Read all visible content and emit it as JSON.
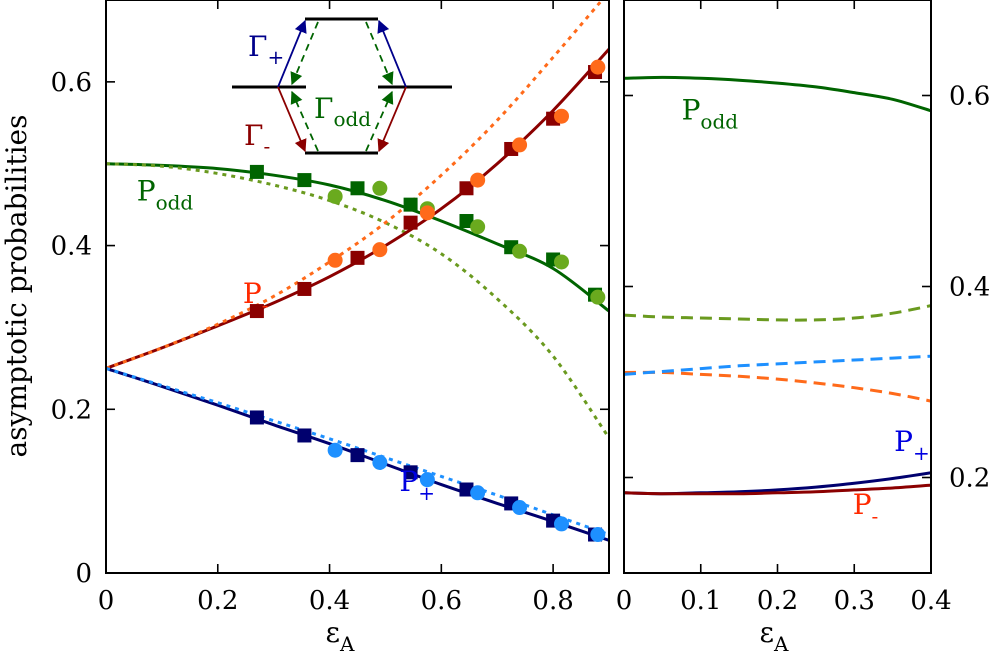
{
  "chart_data": [
    {
      "type": "line",
      "panel": "left",
      "xlabel": "ε",
      "xlabel_sub": "A",
      "ylabel": "asymptotic probabilities",
      "xlim": [
        0,
        0.9
      ],
      "ylim": [
        0,
        0.7
      ],
      "x_ticks": [
        0,
        0.2,
        0.4,
        0.6,
        0.8
      ],
      "x_tick_labels": [
        "0",
        "0.2",
        "0.4",
        "0.6",
        "0.8"
      ],
      "y_ticks": [
        0,
        0.2,
        0.4,
        0.6
      ],
      "y_tick_labels": [
        "0",
        "0.2",
        "0.4",
        "0.6"
      ],
      "grid": false,
      "legend": "inline labels",
      "series": [
        {
          "label": "P_odd",
          "color": "#006400",
          "style": "solid",
          "x": [
            0,
            0.1,
            0.2,
            0.3,
            0.4,
            0.5,
            0.6,
            0.7,
            0.8,
            0.9
          ],
          "y": [
            0.5,
            0.498,
            0.494,
            0.486,
            0.474,
            0.455,
            0.43,
            0.402,
            0.372,
            0.32
          ]
        },
        {
          "label": "P_odd approx",
          "color": "#6a9a1f",
          "style": "dotted",
          "x": [
            0,
            0.1,
            0.2,
            0.3,
            0.4,
            0.5,
            0.6,
            0.7,
            0.8,
            0.9
          ],
          "y": [
            0.5,
            0.497,
            0.488,
            0.474,
            0.455,
            0.428,
            0.39,
            0.335,
            0.265,
            0.165
          ]
        },
        {
          "label": "P_-",
          "color": "#8b0000",
          "style": "solid",
          "x": [
            0,
            0.1,
            0.2,
            0.3,
            0.4,
            0.5,
            0.6,
            0.7,
            0.8,
            0.9
          ],
          "y": [
            0.25,
            0.275,
            0.302,
            0.33,
            0.362,
            0.4,
            0.445,
            0.5,
            0.565,
            0.64
          ]
        },
        {
          "label": "P_- approx",
          "color": "#ff6a1a",
          "style": "dotted",
          "x": [
            0,
            0.1,
            0.2,
            0.3,
            0.4,
            0.5,
            0.6,
            0.7,
            0.8,
            0.9
          ],
          "y": [
            0.25,
            0.275,
            0.304,
            0.338,
            0.38,
            0.428,
            0.486,
            0.553,
            0.63,
            0.71
          ]
        },
        {
          "label": "P_+",
          "color": "#00006e",
          "style": "solid",
          "x": [
            0,
            0.1,
            0.2,
            0.3,
            0.4,
            0.5,
            0.6,
            0.7,
            0.8,
            0.9
          ],
          "y": [
            0.25,
            0.228,
            0.205,
            0.181,
            0.158,
            0.133,
            0.108,
            0.085,
            0.063,
            0.04
          ]
        },
        {
          "label": "P_+ approx",
          "color": "#1e90ff",
          "style": "dotted",
          "x": [
            0,
            0.1,
            0.2,
            0.3,
            0.4,
            0.5,
            0.6,
            0.7,
            0.8,
            0.9
          ],
          "y": [
            0.25,
            0.229,
            0.208,
            0.186,
            0.164,
            0.141,
            0.118,
            0.095,
            0.071,
            0.047
          ]
        }
      ],
      "markers": [
        {
          "shape": "square",
          "color": "#006400",
          "x": [
            0.27,
            0.355,
            0.45,
            0.545,
            0.645,
            0.725,
            0.8,
            0.875
          ],
          "y": [
            0.49,
            0.48,
            0.47,
            0.45,
            0.43,
            0.398,
            0.383,
            0.34
          ]
        },
        {
          "shape": "circle",
          "color": "#6aaa1e",
          "x": [
            0.41,
            0.49,
            0.575,
            0.665,
            0.74,
            0.815,
            0.88
          ],
          "y": [
            0.46,
            0.47,
            0.445,
            0.423,
            0.393,
            0.38,
            0.337
          ]
        },
        {
          "shape": "square",
          "color": "#8b0000",
          "x": [
            0.27,
            0.355,
            0.45,
            0.545,
            0.645,
            0.725,
            0.8,
            0.875
          ],
          "y": [
            0.32,
            0.347,
            0.385,
            0.428,
            0.47,
            0.518,
            0.555,
            0.612
          ]
        },
        {
          "shape": "circle",
          "color": "#ff6a1a",
          "x": [
            0.41,
            0.49,
            0.575,
            0.665,
            0.74,
            0.815,
            0.88
          ],
          "y": [
            0.382,
            0.395,
            0.44,
            0.48,
            0.523,
            0.558,
            0.618
          ]
        },
        {
          "shape": "square",
          "color": "#00006e",
          "x": [
            0.27,
            0.355,
            0.45,
            0.545,
            0.645,
            0.725,
            0.8,
            0.875
          ],
          "y": [
            0.19,
            0.168,
            0.144,
            0.123,
            0.102,
            0.085,
            0.064,
            0.047
          ]
        },
        {
          "shape": "circle",
          "color": "#1e90ff",
          "x": [
            0.41,
            0.49,
            0.575,
            0.665,
            0.74,
            0.815,
            0.88
          ],
          "y": [
            0.15,
            0.135,
            0.114,
            0.098,
            0.08,
            0.06,
            0.047
          ]
        }
      ],
      "labels": [
        {
          "text": "P",
          "sub": "odd",
          "color": "#006400",
          "x": 0.055,
          "y": 0.455
        },
        {
          "text": "P",
          "sub": "-",
          "color": "#ff2a00",
          "x": 0.245,
          "y": 0.33
        },
        {
          "text": "P",
          "sub": "+",
          "color": "#0000e0",
          "x": 0.525,
          "y": 0.1
        }
      ],
      "inset": {
        "gamma_plus": {
          "text": "Γ",
          "sub": "+",
          "color": "#00008b"
        },
        "gamma_minus": {
          "text": "Γ",
          "sub": "-",
          "color": "#8b0000"
        },
        "gamma_odd": {
          "text": "Γ",
          "sub": "odd",
          "color": "#006400"
        }
      }
    },
    {
      "type": "line",
      "panel": "right",
      "xlabel": "ε",
      "xlabel_sub": "A",
      "xlim": [
        0,
        0.4
      ],
      "ylim": [
        0.1,
        0.7
      ],
      "x_ticks": [
        0,
        0.1,
        0.2,
        0.3,
        0.4
      ],
      "x_tick_labels": [
        "0",
        "0.1",
        "0.2",
        "0.3",
        "0.4"
      ],
      "y_ticks": [
        0.2,
        0.4,
        0.6
      ],
      "y_tick_labels": [
        "0.2",
        "0.4",
        "0.6"
      ],
      "grid": false,
      "legend": "inline labels",
      "series": [
        {
          "label": "P_odd",
          "color": "#006400",
          "style": "solid",
          "x": [
            0,
            0.05,
            0.1,
            0.15,
            0.2,
            0.25,
            0.3,
            0.35,
            0.4
          ],
          "y": [
            0.618,
            0.619,
            0.618,
            0.616,
            0.613,
            0.609,
            0.603,
            0.596,
            0.584
          ]
        },
        {
          "label": "P_odd dashed",
          "color": "#6a9a1f",
          "style": "dashed",
          "x": [
            0,
            0.05,
            0.1,
            0.15,
            0.2,
            0.25,
            0.3,
            0.35,
            0.4
          ],
          "y": [
            0.37,
            0.368,
            0.367,
            0.366,
            0.365,
            0.365,
            0.367,
            0.372,
            0.38
          ]
        },
        {
          "label": "P_- dashed",
          "color": "#ff6a1a",
          "style": "dashed",
          "x": [
            0,
            0.05,
            0.1,
            0.15,
            0.2,
            0.25,
            0.3,
            0.35,
            0.4
          ],
          "y": [
            0.31,
            0.31,
            0.308,
            0.306,
            0.303,
            0.299,
            0.294,
            0.288,
            0.28
          ]
        },
        {
          "label": "P_+ dashed",
          "color": "#1e90ff",
          "style": "dashed",
          "x": [
            0,
            0.05,
            0.1,
            0.15,
            0.2,
            0.25,
            0.3,
            0.35,
            0.4
          ],
          "y": [
            0.308,
            0.311,
            0.314,
            0.317,
            0.319,
            0.321,
            0.323,
            0.325,
            0.327
          ]
        },
        {
          "label": "P_+",
          "color": "#00006e",
          "style": "solid",
          "x": [
            0,
            0.05,
            0.1,
            0.15,
            0.2,
            0.25,
            0.3,
            0.35,
            0.4
          ],
          "y": [
            0.184,
            0.183,
            0.184,
            0.185,
            0.187,
            0.19,
            0.194,
            0.199,
            0.205
          ]
        },
        {
          "label": "P_-",
          "color": "#8b0000",
          "style": "solid",
          "x": [
            0,
            0.05,
            0.1,
            0.15,
            0.2,
            0.25,
            0.3,
            0.35,
            0.4
          ],
          "y": [
            0.184,
            0.183,
            0.183,
            0.183,
            0.184,
            0.185,
            0.187,
            0.189,
            0.192
          ]
        }
      ],
      "labels": [
        {
          "text": "P",
          "sub": "odd",
          "color": "#006400",
          "x": 0.075,
          "y": 0.575
        },
        {
          "text": "P",
          "sub": "+",
          "color": "#0000e0",
          "x": 0.352,
          "y": 0.228
        },
        {
          "text": "P",
          "sub": "-",
          "color": "#ff2a00",
          "x": 0.298,
          "y": 0.162
        }
      ]
    }
  ]
}
